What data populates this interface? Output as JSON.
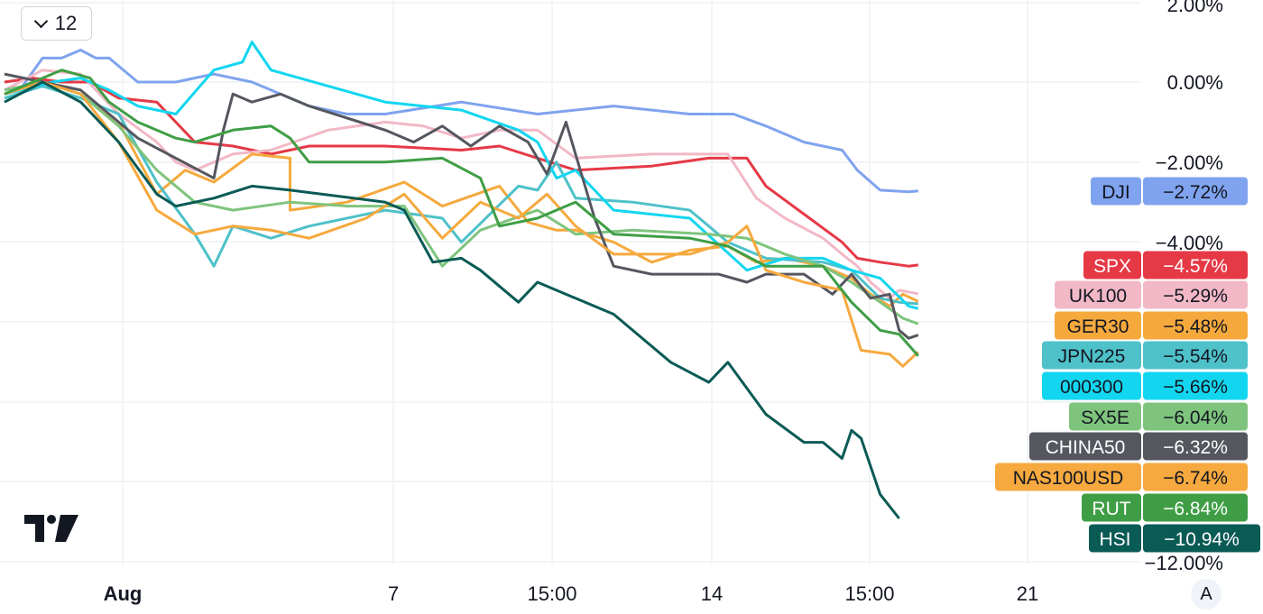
{
  "toolbar": {
    "interval_label": "12",
    "chevron_icon": "chevron-down-icon"
  },
  "auto_scale_label": "A",
  "logo_icon": "tradingview-logo-icon",
  "chart_data": {
    "type": "line",
    "y_unit": "%",
    "y_tick_labels": [
      "2.00%",
      "0.00%",
      "−2.00%",
      "−4.00%",
      "−12.00%"
    ],
    "x_tick_labels": [
      "Aug",
      "7",
      "15:00",
      "14",
      "15:00",
      "21"
    ],
    "grid": true,
    "legend": "right-side value badges",
    "series": [
      {
        "name": "DJI",
        "value_label": "−2.72%",
        "color": "#7fa3ee",
        "text_color": "#131722",
        "points": [
          [
            0,
            -0.3
          ],
          [
            8,
            -0.2
          ],
          [
            11,
            0.0
          ],
          [
            20,
            0.6
          ],
          [
            30,
            0.6
          ],
          [
            40,
            0.8
          ],
          [
            48,
            0.6
          ],
          [
            55,
            0.6
          ],
          [
            70,
            0.0
          ],
          [
            90,
            0.0
          ],
          [
            110,
            0.2
          ],
          [
            130,
            0.0
          ],
          [
            160,
            -0.6
          ],
          [
            180,
            -0.8
          ],
          [
            200,
            -0.8
          ],
          [
            240,
            -0.5
          ],
          [
            280,
            -0.8
          ],
          [
            320,
            -0.6
          ],
          [
            360,
            -0.8
          ],
          [
            383,
            -0.8
          ],
          [
            400,
            -1.1
          ],
          [
            420,
            -1.5
          ],
          [
            440,
            -1.7
          ],
          [
            448,
            -2.2
          ],
          [
            460,
            -2.7
          ],
          [
            475,
            -2.74
          ],
          [
            480,
            -2.72
          ]
        ]
      },
      {
        "name": "SPX",
        "value_label": "−4.57%",
        "color": "#e53946",
        "text_color": "#ffffff",
        "points": [
          [
            0,
            0.0
          ],
          [
            15,
            0.1
          ],
          [
            30,
            0.0
          ],
          [
            45,
            0.0
          ],
          [
            60,
            -0.4
          ],
          [
            80,
            -0.5
          ],
          [
            100,
            -1.5
          ],
          [
            120,
            -1.6
          ],
          [
            140,
            -1.8
          ],
          [
            160,
            -1.6
          ],
          [
            200,
            -1.6
          ],
          [
            240,
            -1.7
          ],
          [
            260,
            -1.6
          ],
          [
            280,
            -1.9
          ],
          [
            300,
            -2.2
          ],
          [
            340,
            -2.1
          ],
          [
            370,
            -1.9
          ],
          [
            390,
            -1.9
          ],
          [
            400,
            -2.6
          ],
          [
            420,
            -3.3
          ],
          [
            440,
            -4.0
          ],
          [
            448,
            -4.4
          ],
          [
            460,
            -4.5
          ],
          [
            475,
            -4.6
          ],
          [
            480,
            -4.57
          ]
        ]
      },
      {
        "name": "UK100",
        "value_label": "−5.29%",
        "color": "#f2b8c6",
        "text_color": "#131722",
        "points": [
          [
            0,
            -0.2
          ],
          [
            20,
            0.3
          ],
          [
            40,
            0.2
          ],
          [
            60,
            -0.8
          ],
          [
            80,
            -1.5
          ],
          [
            90,
            -2.0
          ],
          [
            100,
            -2.2
          ],
          [
            120,
            -1.8
          ],
          [
            140,
            -1.7
          ],
          [
            170,
            -1.2
          ],
          [
            200,
            -1.0
          ],
          [
            220,
            -1.1
          ],
          [
            240,
            -1.4
          ],
          [
            260,
            -1.2
          ],
          [
            280,
            -1.2
          ],
          [
            300,
            -1.9
          ],
          [
            340,
            -1.8
          ],
          [
            380,
            -1.8
          ],
          [
            395,
            -2.9
          ],
          [
            410,
            -3.4
          ],
          [
            430,
            -3.9
          ],
          [
            440,
            -4.3
          ],
          [
            448,
            -4.6
          ],
          [
            455,
            -5.0
          ],
          [
            465,
            -5.4
          ],
          [
            470,
            -5.2
          ],
          [
            480,
            -5.29
          ]
        ]
      },
      {
        "name": "GER30",
        "value_label": "−5.48%",
        "color": "#f5a93d",
        "text_color": "#131722",
        "points": [
          [
            0,
            -0.3
          ],
          [
            20,
            0.0
          ],
          [
            40,
            -0.3
          ],
          [
            60,
            -1.0
          ],
          [
            80,
            -2.8
          ],
          [
            95,
            -2.2
          ],
          [
            110,
            -2.5
          ],
          [
            130,
            -1.8
          ],
          [
            150,
            -1.9
          ],
          [
            150,
            -3.2
          ],
          [
            180,
            -3.0
          ],
          [
            210,
            -2.5
          ],
          [
            230,
            -3.1
          ],
          [
            260,
            -2.6
          ],
          [
            275,
            -3.5
          ],
          [
            290,
            -3.7
          ],
          [
            300,
            -3.7
          ],
          [
            320,
            -4.0
          ],
          [
            340,
            -4.5
          ],
          [
            360,
            -4.2
          ],
          [
            380,
            -4.1
          ],
          [
            395,
            -4.5
          ],
          [
            410,
            -4.4
          ],
          [
            430,
            -4.6
          ],
          [
            445,
            -4.9
          ],
          [
            455,
            -5.3
          ],
          [
            465,
            -5.6
          ],
          [
            472,
            -5.3
          ],
          [
            480,
            -5.48
          ]
        ]
      },
      {
        "name": "JPN225",
        "value_label": "−5.54%",
        "color": "#4ec1c9",
        "text_color": "#131722",
        "points": [
          [
            0,
            -0.4
          ],
          [
            20,
            -0.1
          ],
          [
            40,
            -0.4
          ],
          [
            60,
            -0.8
          ],
          [
            80,
            -2.5
          ],
          [
            100,
            -3.8
          ],
          [
            110,
            -4.6
          ],
          [
            120,
            -3.6
          ],
          [
            140,
            -3.9
          ],
          [
            160,
            -3.6
          ],
          [
            200,
            -3.2
          ],
          [
            230,
            -3.4
          ],
          [
            240,
            -4.0
          ],
          [
            270,
            -2.6
          ],
          [
            280,
            -2.7
          ],
          [
            290,
            -2.0
          ],
          [
            300,
            -2.9
          ],
          [
            330,
            -3.0
          ],
          [
            360,
            -3.2
          ],
          [
            380,
            -4.0
          ],
          [
            400,
            -4.4
          ],
          [
            430,
            -4.5
          ],
          [
            445,
            -4.7
          ],
          [
            460,
            -5.4
          ],
          [
            470,
            -5.5
          ],
          [
            480,
            -5.54
          ]
        ]
      },
      {
        "name": "000300",
        "value_label": "−5.66%",
        "color": "#12d6f0",
        "text_color": "#131722",
        "points": [
          [
            0,
            -0.3
          ],
          [
            25,
            0.0
          ],
          [
            40,
            0.1
          ],
          [
            55,
            -0.2
          ],
          [
            70,
            -0.6
          ],
          [
            90,
            -0.8
          ],
          [
            110,
            0.3
          ],
          [
            125,
            0.5
          ],
          [
            130,
            1.0
          ],
          [
            140,
            0.3
          ],
          [
            170,
            -0.1
          ],
          [
            200,
            -0.5
          ],
          [
            240,
            -0.7
          ],
          [
            270,
            -1.2
          ],
          [
            280,
            -1.5
          ],
          [
            290,
            -2.4
          ],
          [
            300,
            -2.2
          ],
          [
            320,
            -3.2
          ],
          [
            360,
            -3.4
          ],
          [
            390,
            -4.7
          ],
          [
            410,
            -4.4
          ],
          [
            430,
            -4.4
          ],
          [
            445,
            -4.7
          ],
          [
            460,
            -4.9
          ],
          [
            475,
            -5.6
          ],
          [
            480,
            -5.66
          ]
        ]
      },
      {
        "name": "SX5E",
        "value_label": "−6.04%",
        "color": "#7fc47d",
        "text_color": "#131722",
        "points": [
          [
            0,
            -0.2
          ],
          [
            20,
            0.0
          ],
          [
            40,
            -0.3
          ],
          [
            60,
            -1.1
          ],
          [
            80,
            -2.2
          ],
          [
            100,
            -3.0
          ],
          [
            120,
            -3.2
          ],
          [
            150,
            -3.0
          ],
          [
            180,
            -3.1
          ],
          [
            210,
            -3.1
          ],
          [
            230,
            -4.6
          ],
          [
            250,
            -3.7
          ],
          [
            280,
            -3.2
          ],
          [
            300,
            -3.8
          ],
          [
            330,
            -3.7
          ],
          [
            370,
            -3.8
          ],
          [
            390,
            -3.9
          ],
          [
            410,
            -4.3
          ],
          [
            430,
            -4.6
          ],
          [
            445,
            -5.0
          ],
          [
            460,
            -5.5
          ],
          [
            472,
            -5.9
          ],
          [
            480,
            -6.04
          ]
        ]
      },
      {
        "name": "CHINA50",
        "value_label": "−6.32%",
        "color": "#55575f",
        "text_color": "#ffffff",
        "points": [
          [
            0,
            0.2
          ],
          [
            20,
            0.0
          ],
          [
            40,
            -0.2
          ],
          [
            55,
            -0.8
          ],
          [
            70,
            -1.4
          ],
          [
            90,
            -1.9
          ],
          [
            110,
            -2.4
          ],
          [
            115,
            -1.2
          ],
          [
            120,
            -0.3
          ],
          [
            130,
            -0.5
          ],
          [
            145,
            -0.3
          ],
          [
            160,
            -0.6
          ],
          [
            200,
            -1.2
          ],
          [
            215,
            -1.5
          ],
          [
            230,
            -1.1
          ],
          [
            245,
            -1.6
          ],
          [
            260,
            -1.1
          ],
          [
            275,
            -1.5
          ],
          [
            285,
            -2.3
          ],
          [
            295,
            -1.0
          ],
          [
            310,
            -3.4
          ],
          [
            320,
            -4.6
          ],
          [
            340,
            -4.8
          ],
          [
            375,
            -4.8
          ],
          [
            390,
            -5.0
          ],
          [
            400,
            -4.8
          ],
          [
            420,
            -4.8
          ],
          [
            435,
            -5.3
          ],
          [
            445,
            -4.8
          ],
          [
            455,
            -5.4
          ],
          [
            465,
            -5.3
          ],
          [
            470,
            -6.2
          ],
          [
            475,
            -6.4
          ],
          [
            480,
            -6.32
          ]
        ]
      },
      {
        "name": "NAS100USD",
        "value_label": "−6.74%",
        "color": "#f6a93e",
        "text_color": "#131722",
        "points": [
          [
            0,
            -0.3
          ],
          [
            20,
            0.0
          ],
          [
            40,
            -0.3
          ],
          [
            60,
            -1.5
          ],
          [
            80,
            -3.2
          ],
          [
            100,
            -3.8
          ],
          [
            120,
            -3.6
          ],
          [
            140,
            -3.7
          ],
          [
            160,
            -3.9
          ],
          [
            190,
            -3.4
          ],
          [
            210,
            -2.8
          ],
          [
            230,
            -3.9
          ],
          [
            250,
            -3.0
          ],
          [
            270,
            -3.4
          ],
          [
            285,
            -2.8
          ],
          [
            300,
            -3.6
          ],
          [
            320,
            -4.3
          ],
          [
            360,
            -4.3
          ],
          [
            380,
            -4.0
          ],
          [
            390,
            -3.6
          ],
          [
            400,
            -4.7
          ],
          [
            420,
            -5.0
          ],
          [
            440,
            -5.2
          ],
          [
            450,
            -6.7
          ],
          [
            465,
            -6.8
          ],
          [
            472,
            -7.1
          ],
          [
            480,
            -6.74
          ]
        ]
      },
      {
        "name": "RUT",
        "value_label": "−6.84%",
        "color": "#3f9e45",
        "text_color": "#ffffff",
        "points": [
          [
            0,
            -0.3
          ],
          [
            30,
            0.3
          ],
          [
            45,
            0.1
          ],
          [
            55,
            -0.5
          ],
          [
            70,
            -1.0
          ],
          [
            90,
            -1.4
          ],
          [
            100,
            -1.5
          ],
          [
            120,
            -1.2
          ],
          [
            140,
            -1.1
          ],
          [
            150,
            -1.4
          ],
          [
            160,
            -2.0
          ],
          [
            200,
            -2.0
          ],
          [
            230,
            -1.9
          ],
          [
            250,
            -2.4
          ],
          [
            260,
            -3.6
          ],
          [
            280,
            -3.4
          ],
          [
            300,
            -3.0
          ],
          [
            320,
            -3.8
          ],
          [
            360,
            -3.9
          ],
          [
            380,
            -4.1
          ],
          [
            400,
            -4.6
          ],
          [
            430,
            -4.6
          ],
          [
            445,
            -5.5
          ],
          [
            460,
            -6.2
          ],
          [
            470,
            -6.3
          ],
          [
            480,
            -6.84
          ]
        ]
      },
      {
        "name": "HSI",
        "value_label": "−10.94%",
        "color": "#0a5a55",
        "text_color": "#ffffff",
        "points": [
          [
            0,
            -0.5
          ],
          [
            20,
            0.0
          ],
          [
            40,
            -0.5
          ],
          [
            60,
            -1.5
          ],
          [
            80,
            -2.8
          ],
          [
            90,
            -3.1
          ],
          [
            110,
            -2.9
          ],
          [
            130,
            -2.6
          ],
          [
            150,
            -2.7
          ],
          [
            200,
            -3.0
          ],
          [
            210,
            -3.2
          ],
          [
            225,
            -4.5
          ],
          [
            240,
            -4.4
          ],
          [
            250,
            -4.7
          ],
          [
            270,
            -5.5
          ],
          [
            280,
            -5.0
          ],
          [
            300,
            -5.4
          ],
          [
            320,
            -5.8
          ],
          [
            350,
            -7.0
          ],
          [
            370,
            -7.5
          ],
          [
            380,
            -7.0
          ],
          [
            400,
            -8.3
          ],
          [
            420,
            -9.0
          ],
          [
            430,
            -9.0
          ],
          [
            440,
            -9.4
          ],
          [
            445,
            -8.7
          ],
          [
            450,
            -8.9
          ],
          [
            460,
            -10.3
          ],
          [
            470,
            -10.9
          ]
        ]
      }
    ]
  }
}
